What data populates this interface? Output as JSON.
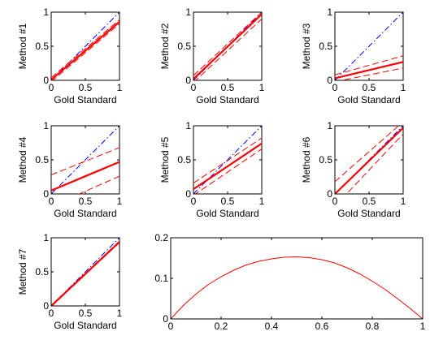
{
  "figure": {
    "background": "#ffffff",
    "axis_color": "#000000",
    "colors": {
      "identity": "#0000ff",
      "fit": "#ff0000",
      "bound": "#ff0000"
    }
  },
  "chart_data": [
    {
      "type": "line",
      "ylabel": "Method #1",
      "xlabel": "Gold Standard",
      "xlim": [
        0,
        1
      ],
      "ylim": [
        0,
        1
      ],
      "xticks": [
        0,
        0.5,
        1
      ],
      "xtick_labels": [
        "0",
        "0.5",
        "1"
      ],
      "yticks": [
        0,
        0.5,
        1
      ],
      "ytick_labels": [
        "0",
        "0.5",
        "1"
      ],
      "series": [
        {
          "role": "identity",
          "style": "dashdot",
          "x": [
            0,
            1
          ],
          "y": [
            0,
            1
          ]
        },
        {
          "role": "fit",
          "style": "solid",
          "x": [
            0,
            1
          ],
          "y": [
            0.01,
            0.86
          ]
        },
        {
          "role": "bound",
          "style": "dashed",
          "x": [
            0,
            1
          ],
          "y": [
            0.04,
            0.89
          ]
        },
        {
          "role": "bound",
          "style": "dashed",
          "x": [
            0,
            1
          ],
          "y": [
            -0.02,
            0.83
          ]
        }
      ]
    },
    {
      "type": "line",
      "ylabel": "Method #2",
      "xlabel": "Gold Standard",
      "xlim": [
        0,
        1
      ],
      "ylim": [
        0,
        1
      ],
      "xticks": [
        0,
        0.5,
        1
      ],
      "xtick_labels": [
        "0",
        "0.5",
        "1"
      ],
      "yticks": [
        0,
        0.5,
        1
      ],
      "ytick_labels": [
        "0",
        "0.5",
        "1"
      ],
      "series": [
        {
          "role": "identity",
          "style": "dashdot",
          "x": [
            0,
            1
          ],
          "y": [
            0,
            1
          ]
        },
        {
          "role": "fit",
          "style": "solid",
          "x": [
            0,
            1
          ],
          "y": [
            0.02,
            0.97
          ]
        },
        {
          "role": "bound",
          "style": "dashed",
          "x": [
            0,
            1
          ],
          "y": [
            0.07,
            1.0
          ]
        },
        {
          "role": "bound",
          "style": "dashed",
          "x": [
            0,
            1
          ],
          "y": [
            -0.03,
            0.9
          ]
        }
      ]
    },
    {
      "type": "line",
      "ylabel": "Method #3",
      "xlabel": "Gold Standard",
      "xlim": [
        0,
        1
      ],
      "ylim": [
        0,
        1
      ],
      "xticks": [
        0,
        0.5,
        1
      ],
      "xtick_labels": [
        "0",
        "0.5",
        "1"
      ],
      "yticks": [
        0,
        0.5,
        1
      ],
      "ytick_labels": [
        "0",
        "0.5",
        "1"
      ],
      "series": [
        {
          "role": "identity",
          "style": "dashdot",
          "x": [
            0,
            1
          ],
          "y": [
            0,
            1
          ]
        },
        {
          "role": "fit",
          "style": "solid",
          "x": [
            0,
            1
          ],
          "y": [
            0.03,
            0.27
          ]
        },
        {
          "role": "bound",
          "style": "dashed",
          "x": [
            0,
            1
          ],
          "y": [
            0.08,
            0.36
          ]
        },
        {
          "role": "bound",
          "style": "dashed",
          "x": [
            0,
            1
          ],
          "y": [
            -0.02,
            0.18
          ]
        }
      ]
    },
    {
      "type": "line",
      "ylabel": "Method #4",
      "xlabel": "Gold Standard",
      "xlim": [
        0,
        1
      ],
      "ylim": [
        0,
        1
      ],
      "xticks": [
        0,
        0.5,
        1
      ],
      "xtick_labels": [
        "0",
        "0.5",
        "1"
      ],
      "yticks": [
        0,
        0.5,
        1
      ],
      "ytick_labels": [
        "0",
        "0.5",
        "1"
      ],
      "series": [
        {
          "role": "identity",
          "style": "dashdot",
          "x": [
            0,
            1
          ],
          "y": [
            0,
            1
          ]
        },
        {
          "role": "fit",
          "style": "solid",
          "x": [
            0,
            1
          ],
          "y": [
            0.05,
            0.47
          ]
        },
        {
          "role": "bound",
          "style": "dashed",
          "x": [
            0,
            1
          ],
          "y": [
            0.28,
            0.68
          ]
        },
        {
          "role": "bound",
          "style": "dashed",
          "x": [
            0,
            1
          ],
          "y": [
            -0.18,
            0.26
          ]
        }
      ]
    },
    {
      "type": "line",
      "ylabel": "Method #5",
      "xlabel": "Gold Standard",
      "xlim": [
        0,
        1
      ],
      "ylim": [
        0,
        1
      ],
      "xticks": [
        0,
        0.5,
        1
      ],
      "xtick_labels": [
        "0",
        "0.5",
        "1"
      ],
      "yticks": [
        0,
        0.5,
        1
      ],
      "ytick_labels": [
        "0",
        "0.5",
        "1"
      ],
      "series": [
        {
          "role": "identity",
          "style": "dashdot",
          "x": [
            0,
            1
          ],
          "y": [
            0,
            1
          ]
        },
        {
          "role": "fit",
          "style": "solid",
          "x": [
            0,
            1
          ],
          "y": [
            0.07,
            0.74
          ]
        },
        {
          "role": "bound",
          "style": "dashed",
          "x": [
            0,
            1
          ],
          "y": [
            0.16,
            0.82
          ]
        },
        {
          "role": "bound",
          "style": "dashed",
          "x": [
            0,
            1
          ],
          "y": [
            -0.02,
            0.66
          ]
        }
      ]
    },
    {
      "type": "line",
      "ylabel": "Method #6",
      "xlabel": "Gold Standard",
      "xlim": [
        0,
        1
      ],
      "ylim": [
        0,
        1
      ],
      "xticks": [
        0,
        0.5,
        1
      ],
      "xtick_labels": [
        "0",
        "0.5",
        "1"
      ],
      "yticks": [
        0,
        0.5,
        1
      ],
      "ytick_labels": [
        "0",
        "0.5",
        "1"
      ],
      "series": [
        {
          "role": "identity",
          "style": "dashdot",
          "x": [
            0,
            1
          ],
          "y": [
            0,
            1
          ]
        },
        {
          "role": "fit",
          "style": "solid",
          "x": [
            0,
            1
          ],
          "y": [
            0.0,
            0.97
          ]
        },
        {
          "role": "bound",
          "style": "dashed",
          "x": [
            0,
            1
          ],
          "y": [
            0.18,
            1.06
          ]
        },
        {
          "role": "bound",
          "style": "dashed",
          "x": [
            0,
            1
          ],
          "y": [
            -0.18,
            0.88
          ]
        }
      ]
    },
    {
      "type": "line",
      "ylabel": "Method #7",
      "xlabel": "Gold Standard",
      "xlim": [
        0,
        1
      ],
      "ylim": [
        0,
        1
      ],
      "xticks": [
        0,
        0.5,
        1
      ],
      "xtick_labels": [
        "0",
        "0.5",
        "1"
      ],
      "yticks": [
        0,
        0.5,
        1
      ],
      "ytick_labels": [
        "0",
        "0.5",
        "1"
      ],
      "series": [
        {
          "role": "identity",
          "style": "dashdot",
          "x": [
            0,
            1
          ],
          "y": [
            0,
            1
          ]
        },
        {
          "role": "fit",
          "style": "solid",
          "x": [
            0,
            1
          ],
          "y": [
            0.0,
            0.94
          ]
        },
        {
          "role": "bound",
          "style": "dashed",
          "x": [
            0,
            1
          ],
          "y": [
            0.01,
            0.95
          ]
        },
        {
          "role": "bound",
          "style": "dashed",
          "x": [
            0,
            1
          ],
          "y": [
            -0.01,
            0.93
          ]
        }
      ]
    },
    {
      "type": "line",
      "ylabel": "",
      "xlabel": "",
      "xlim": [
        0,
        1
      ],
      "ylim": [
        0,
        0.2
      ],
      "xticks": [
        0,
        0.2,
        0.4,
        0.6,
        0.8,
        1
      ],
      "xtick_labels": [
        "0",
        "0.2",
        "0.4",
        "0.6",
        "0.8",
        "1"
      ],
      "yticks": [
        0,
        0.1,
        0.2
      ],
      "ytick_labels": [
        "0",
        "0.1",
        "0.2"
      ],
      "series": [
        {
          "role": "curve",
          "style": "thin",
          "x": [
            0,
            0.05,
            0.1,
            0.15,
            0.2,
            0.25,
            0.3,
            0.35,
            0.4,
            0.45,
            0.5,
            0.55,
            0.6,
            0.65,
            0.7,
            0.75,
            0.8,
            0.85,
            0.9,
            0.95,
            1.0
          ],
          "y": [
            0,
            0.033,
            0.061,
            0.085,
            0.104,
            0.12,
            0.133,
            0.142,
            0.148,
            0.152,
            0.153,
            0.151,
            0.146,
            0.138,
            0.126,
            0.111,
            0.093,
            0.073,
            0.05,
            0.026,
            0
          ]
        }
      ]
    }
  ]
}
